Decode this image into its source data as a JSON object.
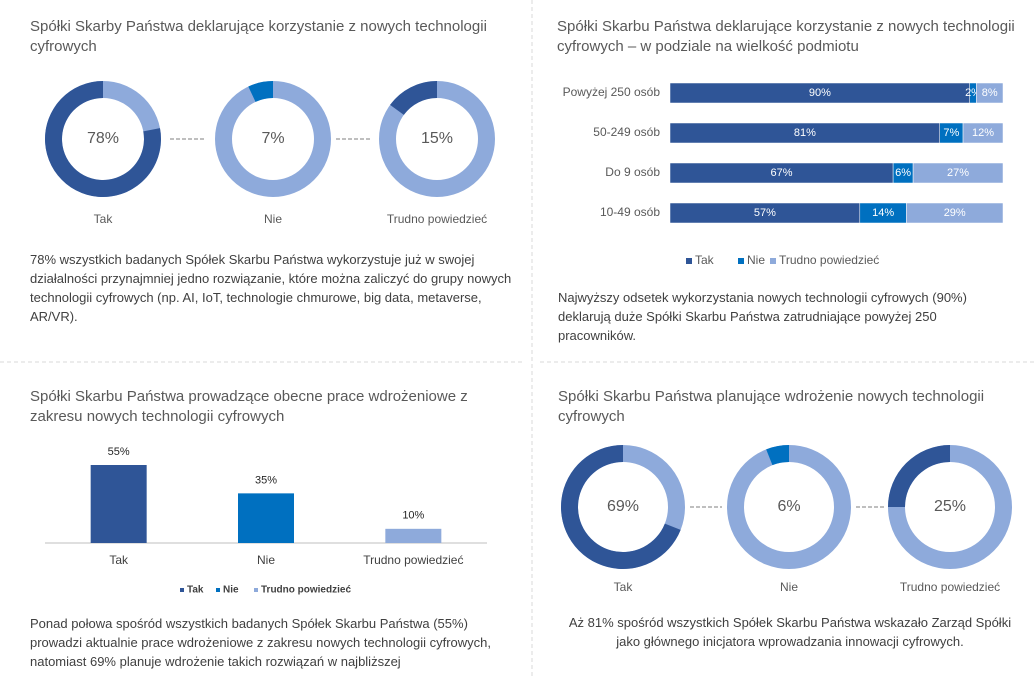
{
  "chart_data": [
    {
      "type": "donut",
      "title": "Spółki Skarby Państwa deklarujące korzystanie z nowych technologii cyfrowych",
      "categories": [
        "Tak",
        "Nie",
        "Trudno powiedzieć"
      ],
      "values": [
        78,
        7,
        15
      ],
      "value_labels": [
        "78%",
        "7%",
        "15%"
      ],
      "colors": [
        "#2f5597",
        "#0070c0",
        "#2f5597"
      ],
      "track_color": "#8eaadb",
      "caption": "78% wszystkich badanych Spółek Skarbu Państwa wykorzystuje już w swojej działalności przynajmniej jedno rozwiązanie, które można zaliczyć do grupy nowych technologii cyfrowych (np. AI, IoT, technologie chmurowe, big data, metaverse, AR/VR)."
    },
    {
      "type": "stackedbar",
      "title": "Spółki Skarbu Państwa deklarujące korzystanie z nowych technologii cyfrowych – w podziale na wielkość podmiotu",
      "categories": [
        "Powyżej 250 osób",
        "50-249 osób",
        "Do 9 osób",
        "10-49 osób"
      ],
      "series": [
        {
          "name": "Tak",
          "color": "#2f5597",
          "values": [
            90,
            81,
            67,
            57
          ],
          "value_labels": [
            "90%",
            "81%",
            "67%",
            "57%"
          ]
        },
        {
          "name": "Nie",
          "color": "#0070c0",
          "values": [
            2,
            7,
            6,
            14
          ],
          "value_labels": [
            "2%",
            "7%",
            "6%",
            "14%"
          ]
        },
        {
          "name": "Trudno powiedzieć",
          "color": "#8eaadb",
          "values": [
            8,
            12,
            27,
            29
          ],
          "value_labels": [
            "8%",
            "12%",
            "27%",
            "29%"
          ]
        }
      ],
      "legend": "bottom",
      "caption": "Najwyższy odsetek wykorzystania nowych technologii cyfrowych (90%) deklarują duże Spółki Skarbu Państwa zatrudniające powyżej 250 pracowników."
    },
    {
      "type": "bar",
      "title": "Spółki Skarbu Państwa prowadzące obecne prace wdrożeniowe z zakresu nowych technologii cyfrowych",
      "categories": [
        "Tak",
        "Nie",
        "Trudno powiedzieć"
      ],
      "values": [
        55,
        35,
        10
      ],
      "value_labels": [
        "55%",
        "35%",
        "10%"
      ],
      "colors": [
        "#2f5597",
        "#0070c0",
        "#8eaadb"
      ],
      "legend": "bottom",
      "caption": "Ponad połowa spośród wszystkich badanych Spółek Skarbu Państwa (55%) prowadzi aktualnie prace wdrożeniowe z zakresu nowych technologii cyfrowych, natomiast 69% planuje wdrożenie takich rozwiązań w najbliższej"
    },
    {
      "type": "donut",
      "title": "Spółki Skarbu Państwa planujące wdrożenie nowych technologii cyfrowych",
      "categories": [
        "Tak",
        "Nie",
        "Trudno powiedzieć"
      ],
      "values": [
        69,
        6,
        25
      ],
      "value_labels": [
        "69%",
        "6%",
        "25%"
      ],
      "colors": [
        "#2f5597",
        "#0070c0",
        "#2f5597"
      ],
      "track_color": "#8eaadb",
      "caption": "Aż 81% spośród wszystkich Spółek Skarbu Państwa wskazało Zarząd Spółki jako głównego inicjatora wprowadzania innowacji cyfrowych."
    }
  ]
}
